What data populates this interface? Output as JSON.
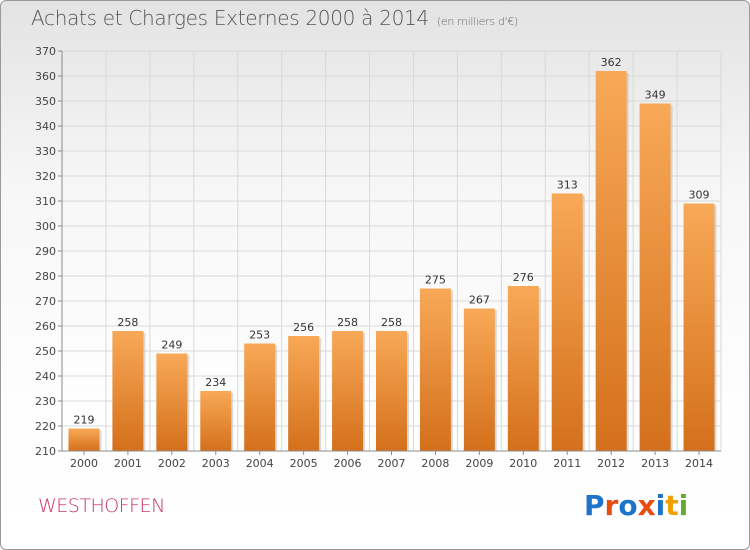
{
  "title": "Achats et Charges Externes 2000 à 2014",
  "subtitle": "(en milliers d'€)",
  "commune": "WESTHOFFEN",
  "logo": {
    "text": "Proxiti",
    "letter_colors": [
      "#1f74c9",
      "#e84c0e",
      "#1f74c9",
      "#e84c0e",
      "#1f74c9",
      "#f2a000",
      "#66aa33"
    ]
  },
  "colors": {
    "bar_light": "#f8a957",
    "bar_dark": "#d4701b",
    "grid": "#d9d9d9",
    "axis": "#8c8c8c"
  },
  "chart_data": {
    "type": "bar",
    "title": "Achats et Charges Externes 2000 à 2014",
    "subtitle": "(en milliers d'€)",
    "categories": [
      "2000",
      "2001",
      "2002",
      "2003",
      "2004",
      "2005",
      "2006",
      "2007",
      "2008",
      "2009",
      "2010",
      "2011",
      "2012",
      "2013",
      "2014"
    ],
    "values": [
      219,
      258,
      249,
      234,
      253,
      256,
      258,
      258,
      275,
      267,
      276,
      313,
      362,
      349,
      309
    ],
    "ylim": [
      210,
      370
    ],
    "yticks": [
      210,
      220,
      230,
      240,
      250,
      260,
      270,
      280,
      290,
      300,
      310,
      320,
      330,
      340,
      350,
      360,
      370
    ],
    "grid": true,
    "data_labels": true
  }
}
